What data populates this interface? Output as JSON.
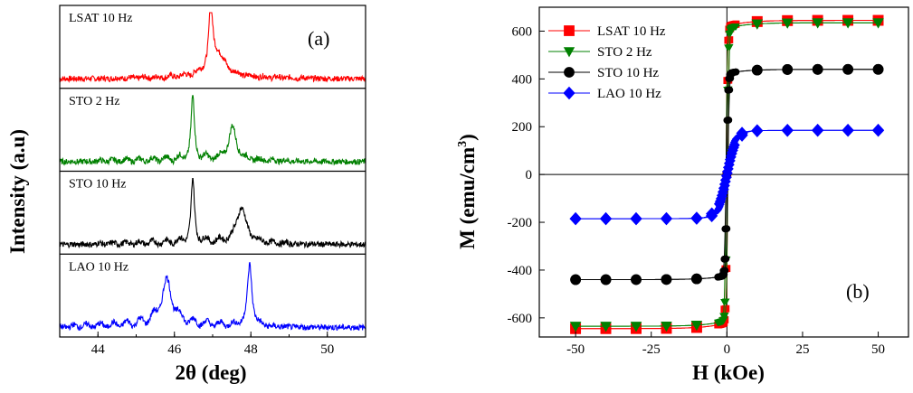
{
  "chart_data": [
    {
      "type": "line",
      "panel_label": "(a)",
      "xlabel": "2θ (deg)",
      "ylabel": "Intensity (a.u)",
      "xlim": [
        43,
        51
      ],
      "x_ticks": [
        "44",
        "46",
        "48",
        "50"
      ],
      "x_tick_values": [
        44,
        46,
        48,
        50
      ],
      "series": [
        {
          "name": "LSAT 10 Hz",
          "color": "#ff0000",
          "peaks": [
            [
              46.95,
              0.85,
              0.05
            ],
            [
              47.1,
              0.35,
              0.25
            ]
          ],
          "fringe_amp": 0.06,
          "base": 0.08,
          "noise": 0.04
        },
        {
          "name": "STO 2 Hz",
          "color": "#008000",
          "peaks": [
            [
              46.48,
              0.85,
              0.05
            ],
            [
              47.52,
              0.45,
              0.12
            ]
          ],
          "fringe_amp": 0.1,
          "base": 0.08,
          "noise": 0.04
        },
        {
          "name": "STO 10 Hz",
          "color": "#000000",
          "peaks": [
            [
              46.48,
              0.85,
              0.05
            ],
            [
              47.75,
              0.5,
              0.15
            ]
          ],
          "fringe_amp": 0.1,
          "base": 0.08,
          "noise": 0.04
        },
        {
          "name": "LAO 10 Hz",
          "color": "#0000ff",
          "peaks": [
            [
              45.8,
              0.55,
              0.18
            ],
            [
              47.97,
              0.85,
              0.07
            ]
          ],
          "fringe_amp": 0.15,
          "base": 0.08,
          "noise": 0.04
        }
      ]
    },
    {
      "type": "scatter",
      "panel_label": "(b)",
      "xlabel": "H (kOe)",
      "ylabel": "M (emu/cm",
      "ylabel_sup": "3",
      "ylabel_close": ")",
      "xlim": [
        -62,
        60
      ],
      "ylim": [
        -680,
        700
      ],
      "x_ticks": [
        "-50",
        "-25",
        "0",
        "25",
        "50"
      ],
      "x_tick_values": [
        -50,
        -25,
        0,
        25,
        50
      ],
      "y_ticks": [
        "-600",
        "-400",
        "-200",
        "0",
        "200",
        "400",
        "600"
      ],
      "y_tick_values": [
        -600,
        -400,
        -200,
        0,
        200,
        400,
        600
      ],
      "legend_position": "top-left",
      "series": [
        {
          "name": "LSAT 10 Hz",
          "color": "#ff0000",
          "marker": "square",
          "ms": 645,
          "hc": 0.3,
          "scale": 0.4,
          "markers": [
            -50,
            -40,
            -30,
            -20,
            -10,
            10,
            20,
            30,
            40,
            50
          ]
        },
        {
          "name": "STO 2 Hz",
          "color": "#008000",
          "marker": "triangle-down",
          "ms": 635,
          "hc": 0.3,
          "scale": 0.45,
          "markers": [
            -50,
            -40,
            -30,
            -20,
            -10,
            10,
            20,
            30,
            40,
            50
          ]
        },
        {
          "name": "STO 10 Hz",
          "color": "#000000",
          "marker": "circle",
          "ms": 440,
          "hc": 0.3,
          "scale": 0.5,
          "markers": [
            -50,
            -40,
            -30,
            -20,
            -10,
            10,
            20,
            30,
            40,
            50
          ]
        },
        {
          "name": "LAO 10 Hz",
          "color": "#0000ff",
          "marker": "diamond",
          "ms": 185,
          "hc": 0.5,
          "scale": 3.0,
          "markers": [
            -50,
            -40,
            -30,
            -20,
            -10,
            -5,
            5,
            10,
            20,
            30,
            40,
            50
          ]
        }
      ]
    }
  ]
}
